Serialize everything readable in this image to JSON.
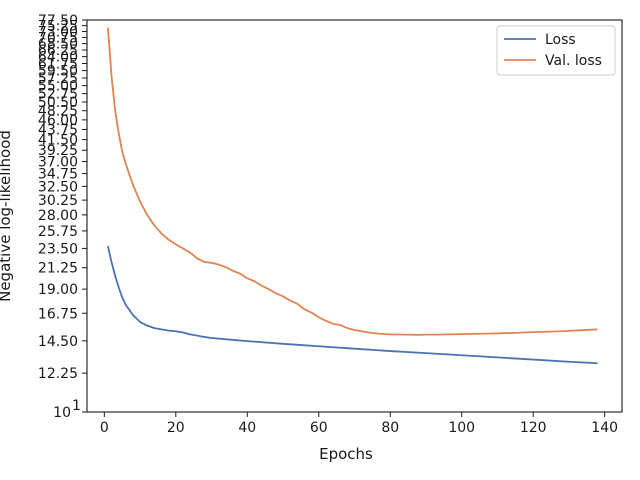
{
  "chart_data": {
    "type": "line",
    "title": "",
    "xlabel": "Epochs",
    "ylabel": "Negative log-likelihood",
    "xlim": [
      -4.85,
      144.85
    ],
    "ylim": [
      10,
      77.5
    ],
    "y_scale": "log",
    "grid": false,
    "legend_position": "top-right",
    "x_ticks": [
      0,
      20,
      40,
      60,
      80,
      100,
      120,
      140
    ],
    "x_tick_labels": [
      "0",
      "20",
      "40",
      "60",
      "80",
      "100",
      "120",
      "140"
    ],
    "y_ticks": [
      12.25,
      14.5,
      16.75,
      19.0,
      21.25,
      23.5,
      25.75,
      28.0,
      30.25,
      32.5,
      34.75,
      37.0,
      39.25,
      41.5,
      43.75,
      46.0,
      48.25,
      50.5,
      52.75,
      55.0,
      57.25,
      59.5,
      61.75,
      64.0,
      66.25,
      68.5,
      70.75,
      73.0,
      75.25,
      77.5
    ],
    "y_tick_labels": [
      "12.25",
      "14.50",
      "16.75",
      "19.00",
      "21.25",
      "23.50",
      "25.75",
      "28.00",
      "30.25",
      "32.50",
      "34.75",
      "37.00",
      "39.25",
      "41.50",
      "43.75",
      "46.00",
      "48.25",
      "50.50",
      "52.75",
      "55.00",
      "57.25",
      "59.50",
      "61.75",
      "64.00",
      "66.25",
      "68.50",
      "70.75",
      "73.00",
      "75.25",
      "77.50"
    ],
    "y_extra_tick": {
      "value": 10,
      "base": "10",
      "exponent": "1"
    },
    "series": [
      {
        "name": "Loss",
        "color": "#4c72b0",
        "x": [
          1,
          2,
          3,
          4,
          5,
          6,
          8,
          10,
          12,
          14,
          16,
          18,
          20,
          22,
          24,
          26,
          28,
          30,
          35,
          40,
          50,
          60,
          70,
          80,
          90,
          100,
          110,
          120,
          130,
          138
        ],
        "y": [
          23.8,
          21.9,
          20.4,
          19.2,
          18.2,
          17.5,
          16.6,
          16.0,
          15.7,
          15.5,
          15.4,
          15.3,
          15.25,
          15.15,
          15.0,
          14.9,
          14.8,
          14.72,
          14.6,
          14.48,
          14.28,
          14.1,
          13.92,
          13.75,
          13.6,
          13.45,
          13.3,
          13.15,
          13.0,
          12.9
        ]
      },
      {
        "name": "Val. loss",
        "color": "#dd8452",
        "x": [
          1,
          2,
          3,
          4,
          5,
          6,
          8,
          10,
          12,
          14,
          16,
          18,
          20,
          22,
          24,
          26,
          28,
          30,
          32,
          34,
          36,
          38,
          40,
          42,
          44,
          46,
          48,
          50,
          52,
          54,
          56,
          58,
          60,
          62,
          64,
          66,
          68,
          70,
          72,
          74,
          76,
          78,
          80,
          84,
          88,
          90,
          92,
          95,
          100,
          105,
          110,
          115,
          120,
          125,
          130,
          135,
          138
        ],
        "y": [
          74.5,
          58.0,
          48.5,
          43.0,
          39.0,
          36.5,
          32.8,
          30.0,
          28.0,
          26.5,
          25.4,
          24.6,
          24.0,
          23.5,
          23.0,
          22.3,
          21.9,
          21.8,
          21.6,
          21.3,
          20.9,
          20.6,
          20.1,
          19.8,
          19.35,
          19.0,
          18.6,
          18.3,
          17.9,
          17.6,
          17.1,
          16.8,
          16.4,
          16.1,
          15.85,
          15.75,
          15.5,
          15.35,
          15.25,
          15.15,
          15.08,
          15.03,
          15.0,
          14.98,
          14.96,
          14.98,
          14.98,
          14.99,
          15.02,
          15.05,
          15.08,
          15.12,
          15.18,
          15.22,
          15.28,
          15.35,
          15.4
        ]
      }
    ]
  }
}
